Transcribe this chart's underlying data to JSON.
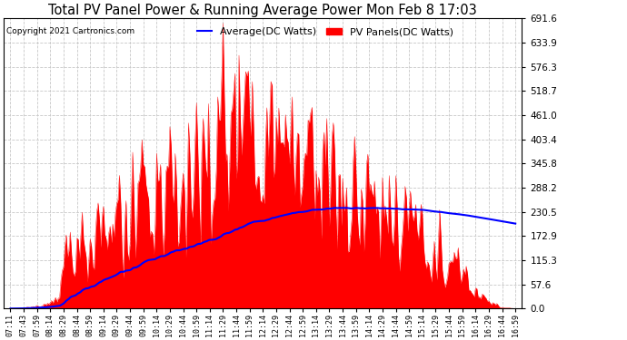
{
  "title": "Total PV Panel Power & Running Average Power Mon Feb 8 17:03",
  "copyright": "Copyright 2021 Cartronics.com",
  "legend_avg": "Average(DC Watts)",
  "legend_pv": "PV Panels(DC Watts)",
  "ymin": 0.0,
  "ymax": 691.6,
  "yticks": [
    0.0,
    57.6,
    115.3,
    172.9,
    230.5,
    288.2,
    345.8,
    403.4,
    461.0,
    518.7,
    576.3,
    633.9,
    691.6
  ],
  "bg_color": "#ffffff",
  "grid_color": "#c8c8c8",
  "pv_color": "#ff0000",
  "avg_color": "#0000ff",
  "title_color": "#000000",
  "copyright_color": "#000000",
  "xtick_labels": [
    "07:11",
    "07:43",
    "07:59",
    "08:14",
    "08:29",
    "08:44",
    "08:59",
    "09:14",
    "09:29",
    "09:44",
    "09:59",
    "10:14",
    "10:29",
    "10:44",
    "10:59",
    "11:14",
    "11:29",
    "11:44",
    "11:59",
    "12:14",
    "12:29",
    "12:44",
    "12:59",
    "13:14",
    "13:29",
    "13:44",
    "13:59",
    "14:14",
    "14:29",
    "14:44",
    "14:59",
    "15:14",
    "15:29",
    "15:44",
    "15:59",
    "16:14",
    "16:29",
    "16:44",
    "16:59"
  ]
}
